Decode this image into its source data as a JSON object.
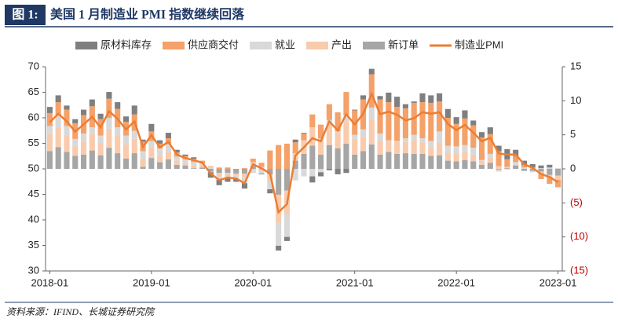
{
  "figure_label": "图 1:",
  "source": "资料来源：IFIND、长城证券研究院",
  "chart_data": {
    "type": "bar",
    "title": "美国 1 月制造业 PMI 指数继续回落",
    "categories": [
      "2018-01",
      null,
      null,
      null,
      null,
      null,
      null,
      null,
      null,
      null,
      null,
      null,
      "2019-01",
      null,
      null,
      null,
      null,
      null,
      null,
      null,
      null,
      null,
      null,
      null,
      "2020-01",
      null,
      null,
      null,
      null,
      null,
      null,
      null,
      null,
      null,
      null,
      null,
      "2021-01",
      null,
      null,
      null,
      null,
      null,
      null,
      null,
      null,
      null,
      null,
      null,
      "2022-01",
      null,
      null,
      null,
      null,
      null,
      null,
      null,
      null,
      null,
      null,
      null,
      "2023-01"
    ],
    "ylim": [
      30,
      70
    ],
    "yticks": [
      30,
      35,
      40,
      45,
      50,
      55,
      60,
      65,
      70
    ],
    "y2lim": [
      -15,
      15
    ],
    "y2ticks": [
      {
        "value": -15,
        "label": "(15)"
      },
      {
        "value": -10,
        "label": "(10)"
      },
      {
        "value": -5,
        "label": "(5)"
      },
      0,
      5,
      10,
      15
    ],
    "negative_tick_color": "#c00000",
    "series": [
      {
        "name": "原材料库存",
        "type": "bar",
        "axis": "y2",
        "color": "#7f7f7f",
        "values": [
          0.9,
          1.0,
          0.6,
          0.6,
          0.8,
          1.0,
          0.8,
          1.0,
          1.0,
          0.8,
          1.3,
          0.3,
          1.1,
          0.5,
          0.8,
          0.4,
          0.2,
          0.2,
          0.0,
          -0.8,
          -0.8,
          -0.5,
          -0.4,
          -0.8,
          0.0,
          -0.1,
          -0.6,
          -0.7,
          -0.6,
          0.4,
          0.1,
          -0.9,
          -0.6,
          -0.2,
          -0.8,
          -0.6,
          0.1,
          0.6,
          0.8,
          0.5,
          1.4,
          1.5,
          0.6,
          0.2,
          1.3,
          1.1,
          1.2,
          1.3,
          1.0,
          1.2,
          0.7,
          0.8,
          1.0,
          0.8,
          1.5,
          0.9,
          0.6,
          0.5,
          0.4,
          0.4,
          0.0
        ]
      },
      {
        "name": "供应商交付",
        "type": "bar",
        "axis": "y2",
        "color": "#f4a16a",
        "values": [
          1.9,
          2.0,
          2.4,
          2.3,
          2.7,
          3.1,
          2.4,
          2.8,
          2.7,
          2.0,
          2.4,
          1.4,
          1.4,
          0.7,
          0.9,
          0.6,
          0.5,
          0.5,
          0.4,
          0.1,
          0.2,
          0.2,
          0.0,
          0.1,
          0.5,
          0.6,
          2.7,
          3.5,
          3.7,
          1.6,
          1.0,
          1.9,
          2.0,
          2.3,
          2.8,
          3.4,
          3.6,
          4.4,
          4.9,
          5.0,
          5.6,
          5.0,
          4.4,
          4.7,
          5.3,
          5.6,
          4.4,
          4.1,
          3.3,
          3.9,
          3.3,
          3.3,
          2.9,
          2.2,
          1.1,
          0.9,
          0.4,
          0.1,
          -0.9,
          -0.9,
          -1.1
        ]
      },
      {
        "name": "就业",
        "type": "bar",
        "axis": "y2",
        "color": "#d9d9d9",
        "values": [
          1.2,
          1.8,
          1.4,
          1.1,
          1.2,
          1.0,
          1.1,
          1.6,
          1.2,
          1.3,
          1.2,
          1.1,
          1.0,
          1.0,
          1.1,
          0.6,
          0.5,
          0.5,
          0.3,
          0.3,
          -0.5,
          -0.2,
          -0.5,
          -0.9,
          -0.6,
          -0.6,
          -1.1,
          -3.4,
          -3.3,
          -1.7,
          -1.1,
          -1.1,
          -0.5,
          0.6,
          0.1,
          1.0,
          0.6,
          1.1,
          1.8,
          1.1,
          0.1,
          0.1,
          0.5,
          0.8,
          0.6,
          1.0,
          1.6,
          1.0,
          1.1,
          1.0,
          1.0,
          0.1,
          0.5,
          -0.3,
          -0.1,
          0.4,
          0.2,
          -0.2,
          0.1,
          0.2,
          0.1
        ]
      },
      {
        "name": "产出",
        "type": "bar",
        "axis": "y2",
        "color": "#f8cbad",
        "values": [
          2.5,
          2.8,
          2.4,
          1.4,
          1.9,
          2.4,
          1.8,
          2.8,
          2.6,
          2.1,
          2.1,
          1.2,
          1.5,
          1.0,
          1.1,
          0.6,
          0.4,
          0.4,
          0.3,
          -0.1,
          -0.5,
          -0.6,
          -0.3,
          -0.5,
          0.6,
          0.3,
          -1.1,
          -4.1,
          -3.5,
          1.1,
          2.0,
          2.7,
          2.4,
          3.1,
          2.4,
          3.2,
          2.3,
          2.1,
          3.6,
          2.0,
          1.6,
          1.8,
          1.7,
          2.0,
          1.7,
          1.2,
          1.9,
          1.2,
          1.1,
          1.2,
          1.0,
          0.6,
          0.8,
          0.4,
          0.2,
          0.1,
          0.0,
          0.1,
          -0.2,
          -0.4,
          -0.6
        ]
      },
      {
        "name": "新订单",
        "type": "bar",
        "axis": "y2",
        "color": "#a6a6a6",
        "values": [
          2.6,
          3.2,
          2.5,
          1.9,
          2.1,
          2.7,
          2.0,
          3.1,
          2.3,
          1.5,
          2.3,
          0.3,
          1.6,
          1.0,
          1.4,
          0.6,
          0.5,
          0.1,
          0.2,
          -0.4,
          -0.6,
          -0.6,
          -0.7,
          -0.7,
          0.4,
          -0.1,
          -0.8,
          -3.8,
          -3.2,
          1.2,
          2.2,
          3.4,
          2.1,
          3.5,
          3.0,
          3.7,
          2.1,
          2.6,
          3.6,
          2.1,
          2.5,
          2.2,
          2.3,
          2.2,
          2.2,
          1.9,
          2.0,
          1.2,
          1.1,
          1.3,
          1.1,
          0.6,
          0.9,
          -0.1,
          0.1,
          0.5,
          -0.3,
          -0.3,
          -0.4,
          -0.9,
          -1.0
        ]
      },
      {
        "name": "制造业PMI",
        "type": "line",
        "axis": "y",
        "color": "#ed7d31",
        "values": [
          59.1,
          60.8,
          59.3,
          57.3,
          58.7,
          60.2,
          58.1,
          61.3,
          59.8,
          57.7,
          59.3,
          54.3,
          56.6,
          54.2,
          55.3,
          52.8,
          52.1,
          51.7,
          51.2,
          49.1,
          47.8,
          48.3,
          48.1,
          47.2,
          50.9,
          50.1,
          49.1,
          41.5,
          43.1,
          52.6,
          54.2,
          56.0,
          55.4,
          59.3,
          57.5,
          60.7,
          58.7,
          60.8,
          64.7,
          60.7,
          61.2,
          60.6,
          59.5,
          59.9,
          61.1,
          60.8,
          61.1,
          58.8,
          57.6,
          58.6,
          57.1,
          55.4,
          56.1,
          53.0,
          52.8,
          52.8,
          50.9,
          50.2,
          49.0,
          48.4,
          47.4
        ]
      }
    ]
  }
}
